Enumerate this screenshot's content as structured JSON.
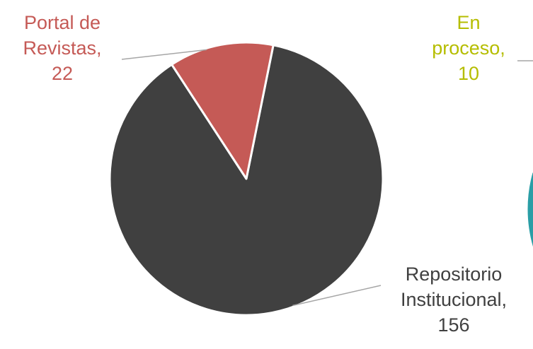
{
  "chart_data": [
    {
      "type": "pie",
      "categories": [
        "Repositorio Institucional",
        "Portal de Revistas"
      ],
      "values": [
        156,
        22
      ],
      "colors": [
        "#404040",
        "#c55a56"
      ],
      "labels": [
        {
          "lines": [
            "Repositorio",
            "Institucional,",
            "156"
          ],
          "color": "#404040"
        },
        {
          "lines": [
            "Portal de",
            "Revistas,",
            "22"
          ],
          "color": "#c55a56"
        }
      ]
    },
    {
      "type": "pie",
      "categories": [
        "En proceso"
      ],
      "values": [
        10
      ],
      "colors": [
        "#b5bd00",
        "#2a9ea6"
      ],
      "labels": [
        {
          "lines": [
            "En",
            "proceso,",
            "10"
          ],
          "color": "#b5bd00"
        }
      ]
    }
  ]
}
